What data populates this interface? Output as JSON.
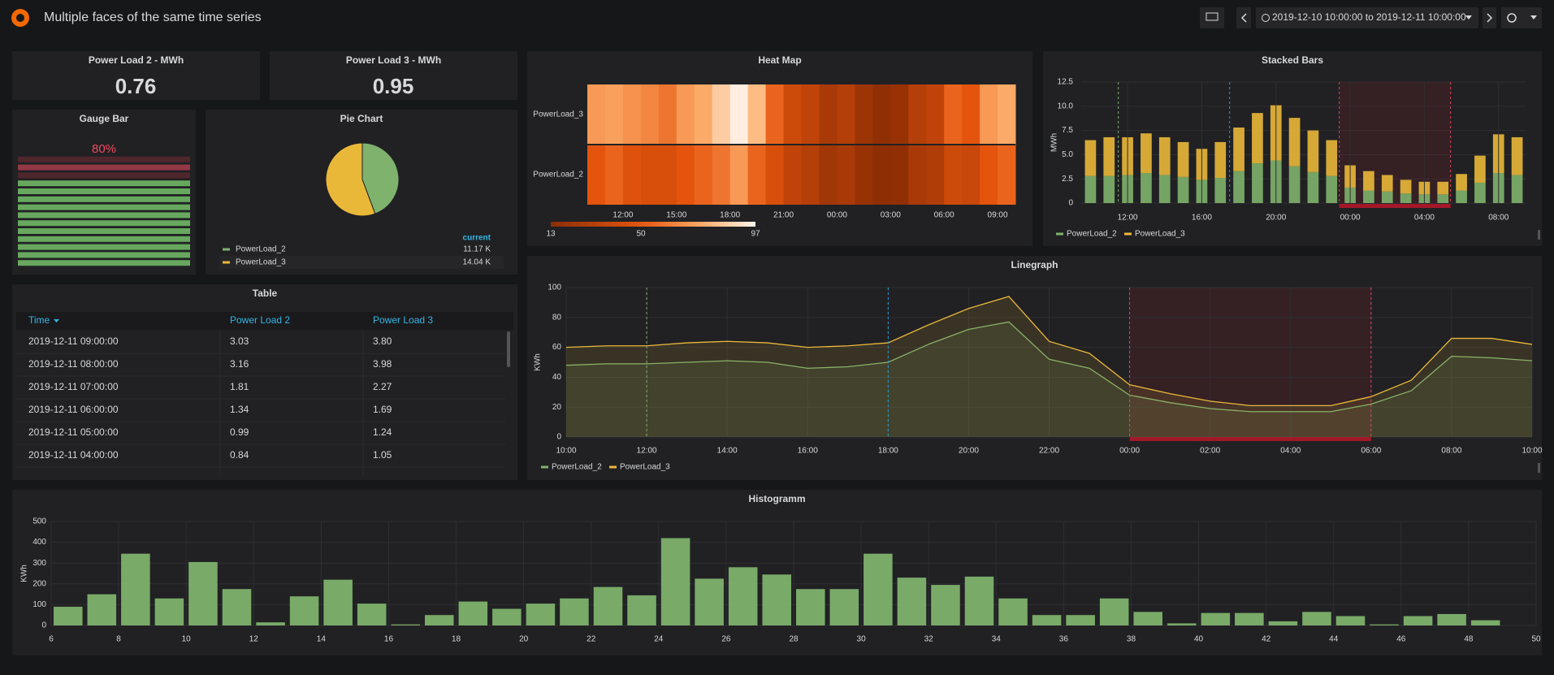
{
  "header": {
    "title": "Multiple faces of the same time series",
    "time_range": "2019-12-10 10:00:00 to 2019-12-11 10:00:00"
  },
  "stats": [
    {
      "title": "Power Load 2 - MWh",
      "value": 0.76
    },
    {
      "title": "Power Load 3 - MWh",
      "value": 0.95
    }
  ],
  "gauge": {
    "title": "Gauge Bar",
    "value": 80,
    "value_label": "80%"
  },
  "table": {
    "title": "Table",
    "columns": [
      "Time",
      "Power Load 2",
      "Power Load 3"
    ],
    "rows": [
      [
        "2019-12-11 09:00:00",
        "3.03",
        "3.80"
      ],
      [
        "2019-12-11 08:00:00",
        "3.16",
        "3.98"
      ],
      [
        "2019-12-11 07:00:00",
        "1.81",
        "2.27"
      ],
      [
        "2019-12-11 06:00:00",
        "1.34",
        "1.69"
      ],
      [
        "2019-12-11 05:00:00",
        "0.99",
        "1.24"
      ],
      [
        "2019-12-11 04:00:00",
        "0.84",
        "1.05"
      ]
    ]
  },
  "chart_data": [
    {
      "type": "pie",
      "title": "Pie Chart",
      "legend_header": "current",
      "series": [
        {
          "name": "PowerLoad_2",
          "color": "#7eb26d",
          "value": 11170,
          "value_label": "11.17 K"
        },
        {
          "name": "PowerLoad_3",
          "color": "#eab839",
          "value": 14040,
          "value_label": "14.04 K"
        }
      ]
    },
    {
      "type": "heatmap",
      "title": "Heat Map",
      "categories": [
        null,
        null,
        "12:00",
        null,
        null,
        "15:00",
        null,
        null,
        "18:00",
        null,
        null,
        "21:00",
        null,
        null,
        "00:00",
        null,
        null,
        "03:00",
        null,
        null,
        "06:00",
        null,
        null,
        "09:00"
      ],
      "series": [
        {
          "name": "PowerLoad_3",
          "values": [
            70,
            72,
            68,
            65,
            60,
            70,
            75,
            85,
            95,
            80,
            55,
            40,
            35,
            25,
            30,
            20,
            15,
            18,
            30,
            35,
            55,
            50,
            70,
            75
          ]
        },
        {
          "name": "PowerLoad_2",
          "values": [
            50,
            55,
            48,
            45,
            45,
            50,
            55,
            60,
            70,
            55,
            45,
            35,
            30,
            22,
            25,
            18,
            14,
            15,
            25,
            28,
            40,
            38,
            50,
            55
          ]
        }
      ],
      "color_range": [
        13,
        97
      ],
      "color_ticks": [
        13,
        50,
        97
      ]
    },
    {
      "type": "stacked_bar",
      "title": "Stacked Bars",
      "y_label": "MWh",
      "categories": [
        null,
        null,
        "12:00",
        null,
        null,
        null,
        "16:00",
        null,
        null,
        null,
        "20:00",
        null,
        null,
        null,
        "00:00",
        null,
        null,
        null,
        "04:00",
        null,
        null,
        null,
        "08:00",
        null
      ],
      "series": [
        {
          "name": "PowerLoad_2",
          "color": "#7eb26d",
          "values": [
            2.8,
            2.8,
            2.9,
            3.1,
            2.9,
            2.7,
            2.4,
            2.6,
            3.3,
            4.1,
            4.4,
            3.8,
            3.2,
            2.8,
            1.6,
            1.3,
            1.2,
            1.0,
            0.9,
            0.9,
            1.3,
            2.1,
            3.1,
            2.9
          ]
        },
        {
          "name": "PowerLoad_3",
          "color": "#eab839",
          "values": [
            3.7,
            4.0,
            3.9,
            4.1,
            3.9,
            3.6,
            3.2,
            3.7,
            4.5,
            5.2,
            5.7,
            5.0,
            4.3,
            3.7,
            2.3,
            2.0,
            1.7,
            1.4,
            1.3,
            1.3,
            1.7,
            2.8,
            4.0,
            3.9
          ]
        }
      ],
      "ylim": [
        0,
        12.5
      ],
      "yticks": [
        0,
        2.5,
        {
          "value": 5,
          "label": "5.0"
        },
        7.5,
        {
          "value": 10,
          "label": "10.0"
        },
        12.5
      ],
      "grid": true
    },
    {
      "type": "line",
      "title": "Linegraph",
      "y_label": "KWh",
      "categories": [
        "10:00",
        null,
        "12:00",
        null,
        "14:00",
        null,
        "16:00",
        null,
        "18:00",
        null,
        "20:00",
        null,
        "22:00",
        null,
        "00:00",
        null,
        "02:00",
        null,
        "04:00",
        null,
        "06:00",
        null,
        "08:00",
        null,
        "10:00"
      ],
      "series": [
        {
          "name": "PowerLoad_2",
          "color": "#7eb26d",
          "values": [
            48,
            49,
            49,
            50,
            51,
            50,
            46,
            47,
            50,
            62,
            72,
            77,
            52,
            46,
            28,
            23,
            19,
            17,
            17,
            17,
            22,
            31,
            54,
            53,
            51
          ]
        },
        {
          "name": "PowerLoad_3",
          "color": "#eab839",
          "values": [
            60,
            61,
            61,
            63,
            64,
            63,
            60,
            61,
            63,
            75,
            86,
            94,
            64,
            56,
            35,
            29,
            24,
            21,
            21,
            21,
            27,
            38,
            66,
            66,
            62
          ]
        }
      ],
      "ylim": [
        0,
        100
      ],
      "yticks": [
        0,
        20,
        40,
        60,
        80,
        100
      ],
      "grid": true
    },
    {
      "type": "histogram",
      "title": "Histogramm",
      "y_label": "KWh",
      "color": "#7eb26d",
      "bins": [
        6,
        7,
        8,
        9,
        10,
        11,
        12,
        13,
        14,
        15,
        16,
        17,
        18,
        19,
        20,
        21,
        22,
        23,
        24,
        25,
        26,
        27,
        28,
        29,
        30,
        31,
        32,
        33,
        34,
        35,
        36,
        37,
        38,
        39,
        40,
        41,
        42,
        43,
        44,
        45,
        46,
        47,
        48,
        49
      ],
      "values": [
        90,
        150,
        345,
        130,
        305,
        175,
        15,
        140,
        220,
        105,
        5,
        50,
        115,
        80,
        105,
        130,
        185,
        145,
        420,
        225,
        280,
        245,
        175,
        175,
        345,
        230,
        195,
        235,
        130,
        50,
        50,
        130,
        65,
        10,
        60,
        60,
        20,
        65,
        45,
        5,
        45,
        55,
        25
      ],
      "xlim": [
        6,
        50
      ],
      "xticks": [
        6,
        8,
        10,
        12,
        14,
        16,
        18,
        20,
        22,
        24,
        26,
        28,
        30,
        32,
        34,
        36,
        38,
        40,
        42,
        44,
        46,
        48,
        50
      ],
      "ylim": [
        0,
        500
      ],
      "yticks": [
        0,
        100,
        200,
        300,
        400,
        500
      ],
      "grid": true
    }
  ]
}
